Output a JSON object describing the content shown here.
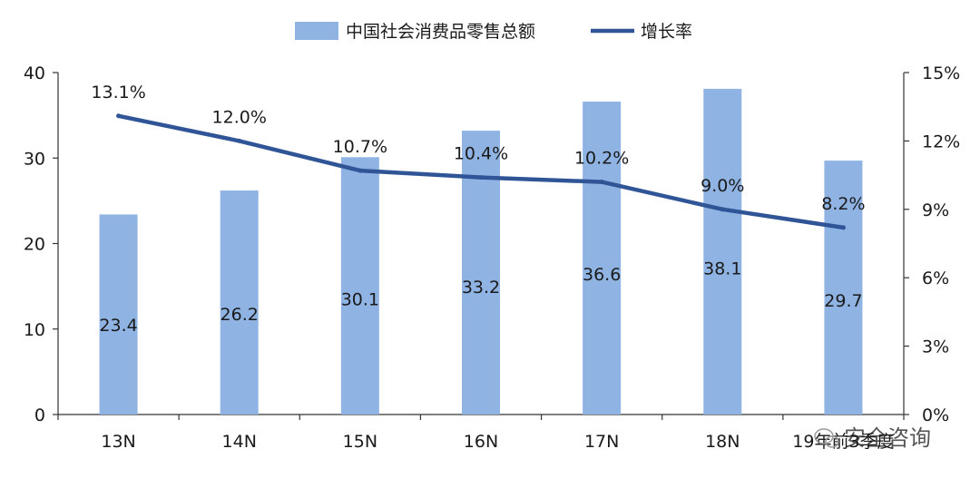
{
  "chart_data": {
    "type": "bar+line",
    "categories": [
      "13N",
      "14N",
      "15N",
      "16N",
      "17N",
      "18N",
      "19年前3季度"
    ],
    "series": [
      {
        "name": "中国社会消费品零售总额",
        "kind": "bar",
        "axis": "left",
        "values": [
          23.4,
          26.2,
          30.1,
          33.2,
          36.6,
          38.1,
          29.7
        ],
        "labels": [
          "23.4",
          "26.2",
          "30.1",
          "33.2",
          "36.6",
          "38.1",
          "29.7"
        ],
        "color": "#8fb3e3"
      },
      {
        "name": "增长率",
        "kind": "line",
        "axis": "right",
        "values": [
          13.1,
          12.0,
          10.7,
          10.4,
          10.2,
          9.0,
          8.2
        ],
        "labels": [
          "13.1%",
          "12.0%",
          "10.7%",
          "10.4%",
          "10.2%",
          "9.0%",
          "8.2%"
        ],
        "color": "#2f5597"
      }
    ],
    "y_left": {
      "min": 0,
      "max": 40,
      "ticks": [
        "0",
        "10",
        "20",
        "30",
        "40"
      ]
    },
    "y_right": {
      "min": 0,
      "max": 15,
      "ticks": [
        "0%",
        "3%",
        "6%",
        "9%",
        "12%",
        "15%"
      ]
    },
    "legend": {
      "position": "top-center",
      "items": [
        "中国社会消费品零售总额",
        "增长率"
      ]
    }
  },
  "watermark": "安全咨询"
}
